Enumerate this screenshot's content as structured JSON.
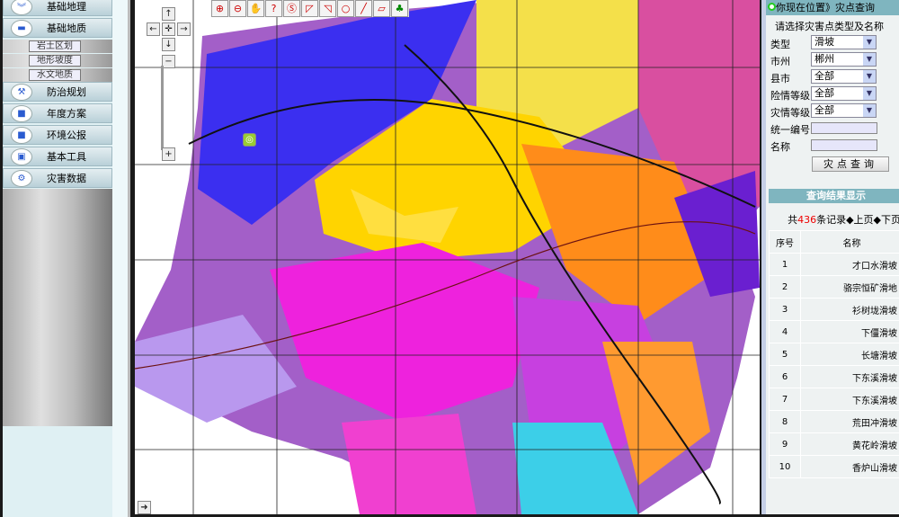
{
  "sidebar": {
    "items": [
      {
        "label": "基础地理",
        "icon": "chevron-double-down-icon"
      },
      {
        "label": "基础地质",
        "icon": "monitor-icon"
      },
      {
        "label": "防治规划",
        "icon": "tools-icon"
      },
      {
        "label": "年度方案",
        "icon": "folder-icon"
      },
      {
        "label": "环境公报",
        "icon": "folder-icon"
      },
      {
        "label": "基本工具",
        "icon": "toolbox-icon"
      },
      {
        "label": "灾害数据",
        "icon": "gear-icon"
      }
    ],
    "subitems": [
      "岩土区划",
      "地形坡度",
      "水文地质"
    ]
  },
  "toolbar": [
    "zoom-in",
    "zoom-out",
    "pan",
    "measure",
    "identify",
    "select-rect",
    "select-polygon",
    "select-point",
    "draw-line",
    "eraser",
    "full-extent"
  ],
  "panel": {
    "location": "你现在位置》灾点查询",
    "prompt": "请选择灾害点类型及名称",
    "fields": [
      {
        "label": "类型",
        "value": "滑坡"
      },
      {
        "label": "市州",
        "value": "郴州"
      },
      {
        "label": "县市",
        "value": "全部"
      },
      {
        "label": "险情等级",
        "value": "全部"
      },
      {
        "label": "灾情等级",
        "value": "全部"
      }
    ],
    "code_label": "统一编号",
    "name_label": "名称",
    "query_button": "灾点查询"
  },
  "results": {
    "title": "查询结果显示",
    "count_prefix": "共",
    "count": "436",
    "count_suffix": "条记录◆上页◆下页",
    "columns": [
      "序号",
      "名称"
    ],
    "rows": [
      [
        "1",
        "才口水滑坡"
      ],
      [
        "2",
        "骆宗恒矿滑地"
      ],
      [
        "3",
        "衫树垅滑坡"
      ],
      [
        "4",
        "下僵滑坡"
      ],
      [
        "5",
        "长塘滑坡"
      ],
      [
        "6",
        "下东溪滑坡"
      ],
      [
        "7",
        "下东溪滑坡"
      ],
      [
        "8",
        "荒田冲滑坡"
      ],
      [
        "9",
        "黄花岭滑坡"
      ],
      [
        "10",
        "香炉山滑坡"
      ]
    ]
  },
  "colors": {
    "header": "#7fb5bf",
    "count": "#ee0000"
  }
}
